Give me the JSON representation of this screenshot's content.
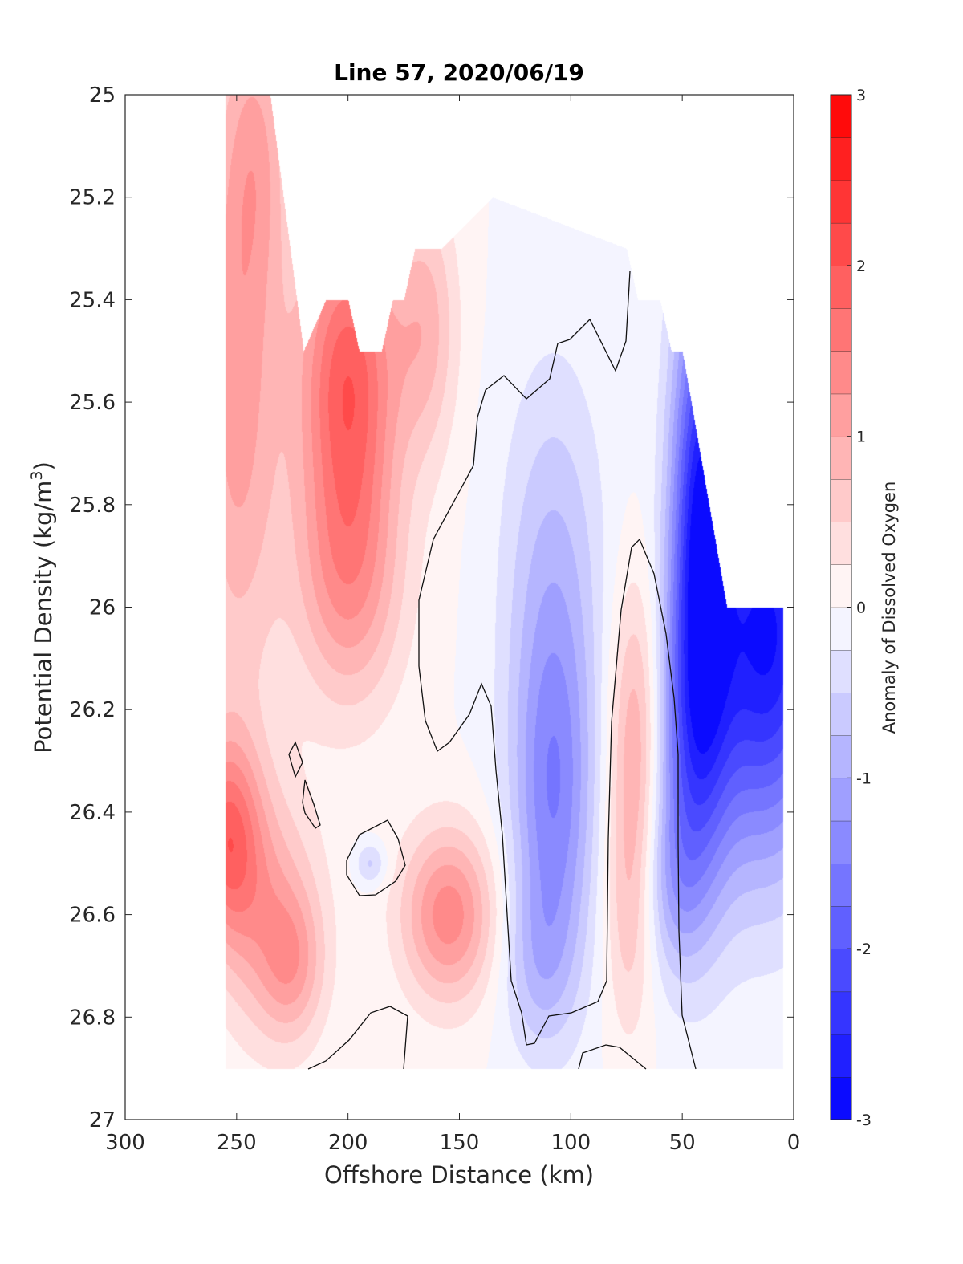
{
  "chart_data": {
    "type": "heatmap",
    "title": "Line 57, 2020/06/19",
    "xlabel": "Offshore Distance (km)",
    "ylabel_main": "Potential Density (kg/m",
    "ylabel_sup": "3",
    "ylabel_close": ")",
    "x_reversed": true,
    "y_reversed": true,
    "xlim": [
      0,
      300
    ],
    "ylim": [
      25,
      27
    ],
    "xticks": [
      300,
      250,
      200,
      150,
      100,
      50,
      0
    ],
    "yticks": [
      25,
      25.2,
      25.4,
      25.6,
      25.8,
      26,
      26.2,
      26.4,
      26.6,
      26.8,
      27
    ],
    "colorbar": {
      "label": "Anomaly of Dissolved Oxygen",
      "clim": [
        -3,
        3
      ],
      "ticks": [
        -3,
        -2,
        -1,
        0,
        1,
        2,
        3
      ],
      "levels": 24,
      "low_color": "#0000ff",
      "mid_color": "#ffffff",
      "high_color": "#ff0000"
    },
    "data_extent": {
      "x": [
        255,
        5
      ],
      "y_top_by_x": [
        [
          255,
          25.0
        ],
        [
          235,
          25.0
        ],
        [
          220,
          25.5
        ],
        [
          210,
          25.4
        ],
        [
          200,
          25.4
        ],
        [
          195,
          25.5
        ],
        [
          185,
          25.5
        ],
        [
          180,
          25.4
        ],
        [
          175,
          25.4
        ],
        [
          170,
          25.3
        ],
        [
          158,
          25.3
        ],
        [
          135,
          25.2
        ],
        [
          75,
          25.3
        ],
        [
          70,
          25.4
        ],
        [
          60,
          25.4
        ],
        [
          55,
          25.5
        ],
        [
          50,
          25.5
        ],
        [
          30,
          26.0
        ],
        [
          5,
          26.0
        ]
      ],
      "y_bottom": 26.9
    },
    "anomaly_features": [
      {
        "label": "nearshore low",
        "x": 15,
        "y": 26.05,
        "anomaly": -2.8
      },
      {
        "label": "nearshore low band",
        "x": 45,
        "y": 25.8,
        "anomaly": -2.4
      },
      {
        "label": "mid-shelf low core",
        "x": 110,
        "y": 26.45,
        "anomaly": -1.25
      },
      {
        "label": "mid-shelf low upper",
        "x": 105,
        "y": 25.9,
        "anomaly": -0.8
      },
      {
        "label": "small low patch",
        "x": 190,
        "y": 26.5,
        "anomaly": -0.2
      },
      {
        "label": "inshore high core",
        "x": 70,
        "y": 26.25,
        "anomaly": 1.25
      },
      {
        "label": "offshore high",
        "x": 200,
        "y": 25.55,
        "anomaly": 1.9
      },
      {
        "label": "offshore high lower",
        "x": 200,
        "y": 25.95,
        "anomaly": 1.4
      },
      {
        "label": "far offshore high",
        "x": 250,
        "y": 25.6,
        "anomaly": 1.2
      },
      {
        "label": "deep offshore high",
        "x": 255,
        "y": 26.45,
        "anomaly": 1.6
      },
      {
        "label": "deep high near 155 km",
        "x": 155,
        "y": 26.6,
        "anomaly": 1.5
      },
      {
        "label": "deep high near 225 km",
        "x": 225,
        "y": 26.7,
        "anomaly": 1.1
      }
    ]
  }
}
